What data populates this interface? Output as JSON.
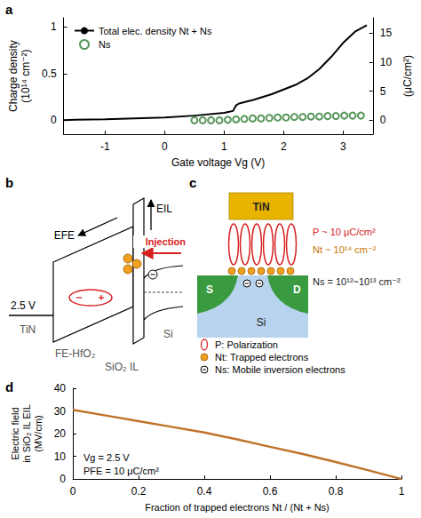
{
  "chart_data": [
    {
      "panel": "a",
      "type": "line",
      "x_label": "Gate voltage Vg (V)",
      "y_label": "Charge density (10¹⁴ cm⁻²)",
      "y2_label": "(μC/cm²)",
      "xlim": [
        -1.7,
        3.5
      ],
      "xticks": [
        -1,
        0,
        1,
        2,
        3
      ],
      "ylim": [
        -0.15,
        1.1
      ],
      "yticks": [
        0,
        0.5,
        1
      ],
      "y2lim": [
        -2.4,
        17.6
      ],
      "y2ticks": [
        0,
        5,
        10,
        15
      ],
      "grid": false,
      "legend": "upper left",
      "series": [
        {
          "name": "Total elec. density Nt + Ns",
          "type": "line",
          "color": "#000000",
          "marker": "none",
          "line_style": "solid",
          "x": [
            -1.7,
            -1.5,
            -1,
            -0.5,
            0,
            0.5,
            1.0,
            1.15,
            1.2,
            1.25,
            1.5,
            1.8,
            2.0,
            2.2,
            2.4,
            2.6,
            2.8,
            3.0,
            3.2,
            3.4
          ],
          "values": [
            0.0,
            0.005,
            0.01,
            0.02,
            0.03,
            0.05,
            0.08,
            0.1,
            0.16,
            0.18,
            0.22,
            0.28,
            0.33,
            0.38,
            0.45,
            0.55,
            0.68,
            0.83,
            0.95,
            1.02
          ]
        },
        {
          "name": "Ns",
          "type": "scatter",
          "color": "#2e7d32",
          "marker": "open_circle",
          "x": [
            0.5,
            0.64,
            0.78,
            0.92,
            1.06,
            1.2,
            1.34,
            1.48,
            1.62,
            1.76,
            1.9,
            2.04,
            2.18,
            2.32,
            2.46,
            2.6,
            2.74,
            2.88,
            3.02,
            3.16,
            3.3
          ],
          "values": [
            0.0,
            0.0,
            0.0,
            0.0,
            0.005,
            0.01,
            0.015,
            0.02,
            0.02,
            0.025,
            0.03,
            0.03,
            0.035,
            0.035,
            0.04,
            0.04,
            0.045,
            0.045,
            0.05,
            0.05,
            0.05
          ]
        }
      ]
    },
    {
      "panel": "d",
      "type": "line",
      "x_label": "Fraction of trapped electrons Nt / (Nt + Ns)",
      "y_label": "Electric field in SiO₂ IL EIL (MV/cm)",
      "xlim": [
        0,
        1
      ],
      "xticks": [
        0,
        0.2,
        0.4,
        0.6,
        0.8,
        1
      ],
      "ylim": [
        0,
        40
      ],
      "yticks": [
        0,
        10,
        20,
        30,
        40
      ],
      "grid": false,
      "annotations": [
        "Vg = 2.5 V",
        "PFE = 10 μC/cm²"
      ],
      "color": "#c0732a",
      "x": [
        0,
        0.1,
        0.2,
        0.3,
        0.4,
        0.5,
        0.6,
        0.7,
        0.8,
        0.9,
        1.0
      ],
      "values": [
        30.5,
        28.0,
        25.5,
        23.0,
        20.5,
        17.5,
        14.2,
        11.0,
        7.5,
        3.8,
        0
      ]
    }
  ],
  "panel_b": {
    "panel": "b",
    "E_FE": "EFE",
    "E_IL": "EIL",
    "injection": "Injection",
    "voltage": "2.5 V",
    "metal": "TiN",
    "ferroelectric": "FE-HfO₂",
    "interlayer": "SiO₂ IL",
    "substrate": "Si"
  },
  "panel_c": {
    "panel": "c",
    "gate": "TiN",
    "polarization": "P ~ 10 μC/cm²",
    "trapped": "Nt ~ 10¹⁴ cm⁻²",
    "mobile": "Ns = 10¹²~10¹³ cm⁻²",
    "source": "S",
    "drain": "D",
    "substrate": "Si",
    "key": [
      "P: Polarization",
      "Nt: Trapped electrons",
      "Ns: Mobile inversion electrons"
    ]
  }
}
